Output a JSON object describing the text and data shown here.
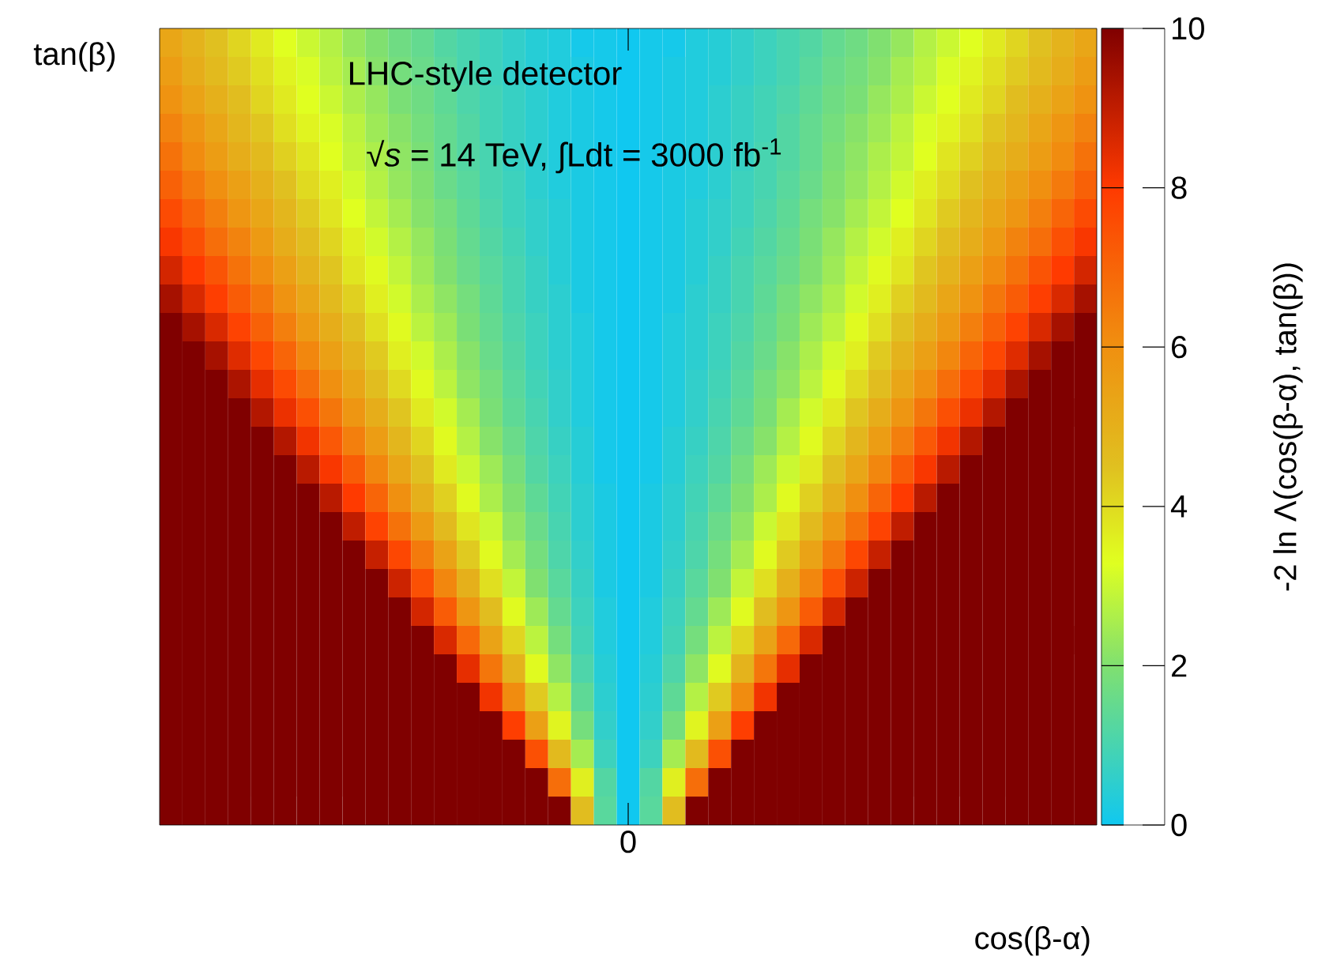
{
  "chart_data": {
    "type": "heatmap",
    "xlabel": "cos(β-α)",
    "ylabel": "tan(β)",
    "clabel": "-2 ln Λ(cos(β-α), tan(β))",
    "annotations": [
      "LHC-style detector",
      "√*s* = 14 TeV,   ∫Ldt = 3000 fb$^{-1}$"
    ],
    "categories": [
      null,
      null,
      null,
      null,
      null,
      null,
      null,
      null,
      null,
      null,
      null,
      null,
      null,
      null,
      null,
      null,
      null,
      null,
      null,
      null,
      "0",
      null,
      null,
      null,
      null,
      null,
      null,
      null,
      null,
      null,
      null,
      null,
      null,
      null,
      null,
      null,
      null,
      null,
      null,
      null,
      null
    ],
    "y_categories": [
      null,
      null,
      null,
      null,
      null,
      null,
      null,
      null,
      null,
      null,
      null,
      null,
      null,
      null,
      null,
      null,
      null,
      null,
      null,
      null,
      null,
      null,
      null,
      null,
      null,
      null,
      null,
      null
    ],
    "clim": [
      0,
      10
    ],
    "cticks": [
      0,
      2,
      4,
      6,
      8,
      10
    ],
    "cells": [
      [
        5.3,
        4.9,
        4.5,
        4.1,
        3.7,
        3.3,
        3.0,
        2.7,
        2.3,
        2.0,
        1.7,
        1.5,
        1.2,
        1.0,
        0.8,
        0.6,
        0.4,
        0.3,
        0.1,
        0.1,
        0,
        0.1,
        0.1,
        0.3,
        0.4,
        0.6,
        0.8,
        1.0,
        1.2,
        1.5,
        1.7,
        2.0,
        2.3,
        2.7,
        3.0,
        3.3,
        3.7,
        4.1,
        4.5,
        4.9,
        5.3
      ],
      [
        5.6,
        5.1,
        4.7,
        4.3,
        3.9,
        3.5,
        3.2,
        2.8,
        2.5,
        2.1,
        1.8,
        1.6,
        1.3,
        1.0,
        0.8,
        0.6,
        0.4,
        0.3,
        0.2,
        0.1,
        0,
        0.1,
        0.2,
        0.3,
        0.4,
        0.6,
        0.8,
        1.0,
        1.3,
        1.6,
        1.8,
        2.1,
        2.5,
        2.8,
        3.2,
        3.5,
        3.9,
        4.3,
        4.7,
        5.1,
        5.6
      ],
      [
        5.9,
        5.4,
        5.0,
        4.6,
        4.1,
        3.7,
        3.3,
        3.0,
        2.6,
        2.3,
        1.9,
        1.7,
        1.4,
        1.1,
        0.9,
        0.7,
        0.5,
        0.3,
        0.2,
        0.1,
        0,
        0.1,
        0.2,
        0.3,
        0.5,
        0.7,
        0.9,
        1.1,
        1.4,
        1.7,
        1.9,
        2.3,
        2.6,
        3.0,
        3.3,
        3.7,
        4.1,
        4.6,
        5.0,
        5.4,
        5.9
      ],
      [
        6.3,
        5.8,
        5.3,
        4.8,
        4.4,
        3.9,
        3.5,
        3.2,
        2.8,
        2.4,
        2.1,
        1.8,
        1.5,
        1.2,
        0.9,
        0.7,
        0.5,
        0.3,
        0.2,
        0.1,
        0,
        0.1,
        0.2,
        0.3,
        0.5,
        0.7,
        0.9,
        1.2,
        1.5,
        1.8,
        2.1,
        2.4,
        2.8,
        3.2,
        3.5,
        3.9,
        4.4,
        4.8,
        5.3,
        5.8,
        6.3
      ],
      [
        6.7,
        6.1,
        5.6,
        5.1,
        4.7,
        4.2,
        3.8,
        3.3,
        2.9,
        2.6,
        2.2,
        1.9,
        1.5,
        1.2,
        1.0,
        0.7,
        0.5,
        0.3,
        0.2,
        0.1,
        0,
        0.1,
        0.2,
        0.3,
        0.5,
        0.7,
        1.0,
        1.2,
        1.5,
        1.9,
        2.2,
        2.6,
        2.9,
        3.3,
        3.8,
        4.2,
        4.7,
        5.1,
        5.6,
        6.1,
        6.7
      ],
      [
        7.1,
        6.5,
        6.0,
        5.5,
        5.0,
        4.5,
        4.0,
        3.6,
        3.1,
        2.7,
        2.3,
        2.0,
        1.6,
        1.3,
        1.0,
        0.8,
        0.5,
        0.3,
        0.2,
        0.1,
        0,
        0.1,
        0.2,
        0.3,
        0.5,
        0.8,
        1.0,
        1.3,
        1.6,
        2.0,
        2.3,
        2.7,
        3.1,
        3.6,
        4.0,
        4.5,
        5.0,
        5.5,
        6.0,
        6.5,
        7.1
      ],
      [
        7.6,
        7.0,
        6.4,
        5.8,
        5.3,
        4.8,
        4.3,
        3.8,
        3.3,
        2.9,
        2.5,
        2.1,
        1.8,
        1.4,
        1.1,
        0.8,
        0.6,
        0.4,
        0.2,
        0.1,
        0,
        0.1,
        0.2,
        0.4,
        0.6,
        0.8,
        1.1,
        1.4,
        1.8,
        2.1,
        2.5,
        2.9,
        3.3,
        3.8,
        4.3,
        4.8,
        5.3,
        5.8,
        6.4,
        7.0,
        7.6
      ],
      [
        8.1,
        7.5,
        6.8,
        6.3,
        5.7,
        5.1,
        4.6,
        4.1,
        3.6,
        3.1,
        2.7,
        2.3,
        1.9,
        1.5,
        1.2,
        0.9,
        0.6,
        0.4,
        0.2,
        0.1,
        0,
        0.1,
        0.2,
        0.4,
        0.6,
        0.9,
        1.2,
        1.5,
        1.9,
        2.3,
        2.7,
        3.1,
        3.6,
        4.1,
        4.6,
        5.1,
        5.7,
        6.3,
        6.8,
        7.5,
        8.1
      ],
      [
        8.7,
        8.0,
        7.4,
        6.7,
        6.1,
        5.5,
        4.9,
        4.4,
        3.8,
        3.4,
        2.9,
        2.4,
        2.0,
        1.6,
        1.3,
        1.0,
        0.7,
        0.4,
        0.2,
        0.1,
        0,
        0.1,
        0.2,
        0.4,
        0.7,
        1.0,
        1.3,
        1.6,
        2.0,
        2.4,
        2.9,
        3.4,
        3.8,
        4.4,
        4.9,
        5.5,
        6.1,
        6.7,
        7.4,
        8.0,
        8.7
      ],
      [
        9.4,
        8.6,
        7.9,
        7.2,
        6.6,
        5.9,
        5.3,
        4.7,
        4.2,
        3.6,
        3.1,
        2.6,
        2.2,
        1.8,
        1.4,
        1.0,
        0.7,
        0.5,
        0.2,
        0.1,
        0,
        0.1,
        0.2,
        0.5,
        0.7,
        1.0,
        1.4,
        1.8,
        2.2,
        2.6,
        3.1,
        3.6,
        4.2,
        4.7,
        5.3,
        5.9,
        6.6,
        7.2,
        7.9,
        8.6,
        9.4
      ],
      [
        10,
        9.4,
        8.6,
        7.8,
        7.1,
        6.4,
        5.7,
        5.1,
        4.5,
        3.9,
        3.4,
        2.8,
        2.4,
        1.9,
        1.5,
        1.1,
        0.8,
        0.5,
        0.3,
        0.1,
        0,
        0.1,
        0.3,
        0.5,
        0.8,
        1.1,
        1.5,
        1.9,
        2.4,
        2.8,
        3.4,
        3.9,
        4.5,
        5.1,
        5.7,
        6.4,
        7.1,
        7.8,
        8.6,
        9.4,
        10
      ],
      [
        10,
        10,
        9.4,
        8.5,
        7.7,
        7.0,
        6.2,
        5.5,
        4.9,
        4.3,
        3.6,
        3.1,
        2.6,
        2.1,
        1.6,
        1.2,
        0.8,
        0.5,
        0.3,
        0.1,
        0,
        0.1,
        0.3,
        0.5,
        0.8,
        1.2,
        1.6,
        2.1,
        2.6,
        3.1,
        3.6,
        4.3,
        4.9,
        5.5,
        6.2,
        7.0,
        7.7,
        8.5,
        9.4,
        10,
        10
      ],
      [
        10,
        10,
        10,
        9.3,
        8.4,
        7.6,
        6.8,
        6.0,
        5.3,
        4.6,
        4.0,
        3.4,
        2.8,
        2.2,
        1.8,
        1.3,
        0.9,
        0.6,
        0.3,
        0.1,
        0,
        0.1,
        0.3,
        0.6,
        0.9,
        1.3,
        1.8,
        2.2,
        2.8,
        3.4,
        4.0,
        4.6,
        5.3,
        6.0,
        6.8,
        7.6,
        8.4,
        9.3,
        10,
        10,
        10
      ],
      [
        10,
        10,
        10,
        10,
        9.2,
        8.3,
        7.5,
        6.6,
        5.8,
        5.1,
        4.4,
        3.7,
        3.1,
        2.5,
        1.9,
        1.4,
        1.0,
        0.6,
        0.3,
        0.1,
        0,
        0.1,
        0.3,
        0.6,
        1.0,
        1.4,
        1.9,
        2.5,
        3.1,
        3.7,
        4.4,
        5.1,
        5.8,
        6.6,
        7.5,
        8.3,
        9.2,
        10,
        10,
        10,
        10
      ],
      [
        10,
        10,
        10,
        10,
        10,
        9.2,
        8.2,
        7.3,
        6.4,
        5.6,
        4.8,
        4.1,
        3.4,
        2.7,
        2.1,
        1.6,
        1.1,
        0.7,
        0.4,
        0.1,
        0,
        0.1,
        0.4,
        0.7,
        1.1,
        1.6,
        2.1,
        2.7,
        3.4,
        4.1,
        4.8,
        5.6,
        6.4,
        7.3,
        8.2,
        9.2,
        10,
        10,
        10,
        10,
        10
      ],
      [
        10,
        10,
        10,
        10,
        10,
        10,
        9.1,
        8.1,
        7.2,
        6.2,
        5.3,
        4.5,
        3.7,
        3.0,
        2.4,
        1.8,
        1.2,
        0.8,
        0.4,
        0.1,
        0,
        0.1,
        0.4,
        0.8,
        1.2,
        1.8,
        2.4,
        3.0,
        3.7,
        4.5,
        5.3,
        6.2,
        7.2,
        8.1,
        9.1,
        10,
        10,
        10,
        10,
        10,
        10
      ],
      [
        10,
        10,
        10,
        10,
        10,
        10,
        10,
        9.1,
        8.0,
        7.0,
        6.0,
        5.0,
        4.2,
        3.4,
        2.6,
        2.0,
        1.4,
        0.9,
        0.5,
        0.2,
        0,
        0.2,
        0.5,
        0.9,
        1.4,
        2.0,
        2.6,
        3.4,
        4.2,
        5.0,
        6.0,
        7.0,
        8.0,
        9.1,
        10,
        10,
        10,
        10,
        10,
        10,
        10
      ],
      [
        10,
        10,
        10,
        10,
        10,
        10,
        10,
        10,
        9.0,
        7.8,
        6.7,
        5.7,
        4.7,
        3.8,
        3.0,
        2.2,
        1.6,
        1.0,
        0.5,
        0.2,
        0,
        0.2,
        0.5,
        1.0,
        1.6,
        2.2,
        3.0,
        3.8,
        4.7,
        5.7,
        6.7,
        7.8,
        9.0,
        10,
        10,
        10,
        10,
        10,
        10,
        10,
        10
      ],
      [
        10,
        10,
        10,
        10,
        10,
        10,
        10,
        10,
        10,
        8.9,
        7.7,
        6.5,
        5.4,
        4.3,
        3.4,
        2.5,
        1.8,
        1.1,
        0.6,
        0.2,
        0,
        0.2,
        0.6,
        1.1,
        1.8,
        2.5,
        3.4,
        4.3,
        5.4,
        6.5,
        7.7,
        8.9,
        10,
        10,
        10,
        10,
        10,
        10,
        10,
        10,
        10
      ],
      [
        10,
        10,
        10,
        10,
        10,
        10,
        10,
        10,
        10,
        10,
        8.8,
        7.5,
        6.2,
        5.0,
        3.9,
        2.9,
        2.0,
        1.3,
        0.7,
        0.2,
        0,
        0.2,
        0.7,
        1.3,
        2.0,
        2.9,
        3.9,
        5.0,
        6.2,
        7.5,
        8.8,
        10,
        10,
        10,
        10,
        10,
        10,
        10,
        10,
        10,
        10
      ],
      [
        10,
        10,
        10,
        10,
        10,
        10,
        10,
        10,
        10,
        10,
        10,
        8.7,
        7.2,
        5.8,
        4.6,
        3.4,
        2.4,
        1.5,
        0.8,
        0.3,
        0,
        0.3,
        0.8,
        1.5,
        2.4,
        3.4,
        4.6,
        5.8,
        7.2,
        8.7,
        10,
        10,
        10,
        10,
        10,
        10,
        10,
        10,
        10,
        10,
        10
      ],
      [
        10,
        10,
        10,
        10,
        10,
        10,
        10,
        10,
        10,
        10,
        10,
        10,
        8.6,
        6.9,
        5.4,
        4.1,
        2.8,
        1.8,
        0.9,
        0.3,
        0,
        0.3,
        0.9,
        1.8,
        2.8,
        4.1,
        5.4,
        6.9,
        8.6,
        10,
        10,
        10,
        10,
        10,
        10,
        10,
        10,
        10,
        10,
        10,
        10
      ],
      [
        10,
        10,
        10,
        10,
        10,
        10,
        10,
        10,
        10,
        10,
        10,
        10,
        10,
        8.4,
        6.6,
        4.9,
        3.4,
        2.2,
        1.1,
        0.4,
        0,
        0.4,
        1.1,
        2.2,
        3.4,
        4.9,
        6.6,
        8.4,
        10,
        10,
        10,
        10,
        10,
        10,
        10,
        10,
        10,
        10,
        10,
        10,
        10
      ],
      [
        10,
        10,
        10,
        10,
        10,
        10,
        10,
        10,
        10,
        10,
        10,
        10,
        10,
        10,
        8.2,
        6.1,
        4.3,
        2.7,
        1.4,
        0.5,
        0,
        0.5,
        1.4,
        2.7,
        4.3,
        6.1,
        8.2,
        10,
        10,
        10,
        10,
        10,
        10,
        10,
        10,
        10,
        10,
        10,
        10,
        10,
        10
      ],
      [
        10,
        10,
        10,
        10,
        10,
        10,
        10,
        10,
        10,
        10,
        10,
        10,
        10,
        10,
        10,
        7.9,
        5.5,
        3.5,
        1.8,
        0.6,
        0,
        0.6,
        1.8,
        3.5,
        5.5,
        7.9,
        10,
        10,
        10,
        10,
        10,
        10,
        10,
        10,
        10,
        10,
        10,
        10,
        10,
        10,
        10
      ],
      [
        10,
        10,
        10,
        10,
        10,
        10,
        10,
        10,
        10,
        10,
        10,
        10,
        10,
        10,
        10,
        10,
        7.5,
        4.7,
        2.5,
        0.8,
        0,
        0.8,
        2.5,
        4.7,
        7.5,
        10,
        10,
        10,
        10,
        10,
        10,
        10,
        10,
        10,
        10,
        10,
        10,
        10,
        10,
        10,
        10
      ],
      [
        10,
        10,
        10,
        10,
        10,
        10,
        10,
        10,
        10,
        10,
        10,
        10,
        10,
        10,
        10,
        10,
        10,
        6.8,
        3.6,
        1.2,
        0,
        1.2,
        3.6,
        6.8,
        10,
        10,
        10,
        10,
        10,
        10,
        10,
        10,
        10,
        10,
        10,
        10,
        10,
        10,
        10,
        10,
        10
      ],
      [
        10,
        10,
        10,
        10,
        10,
        10,
        10,
        10,
        10,
        10,
        10,
        10,
        10,
        10,
        10,
        10,
        10,
        10,
        4.6,
        1.3,
        0,
        1.3,
        4.6,
        10,
        10,
        10,
        10,
        10,
        10,
        10,
        10,
        10,
        10,
        10,
        10,
        10,
        10,
        10,
        10,
        10,
        10
      ]
    ]
  }
}
